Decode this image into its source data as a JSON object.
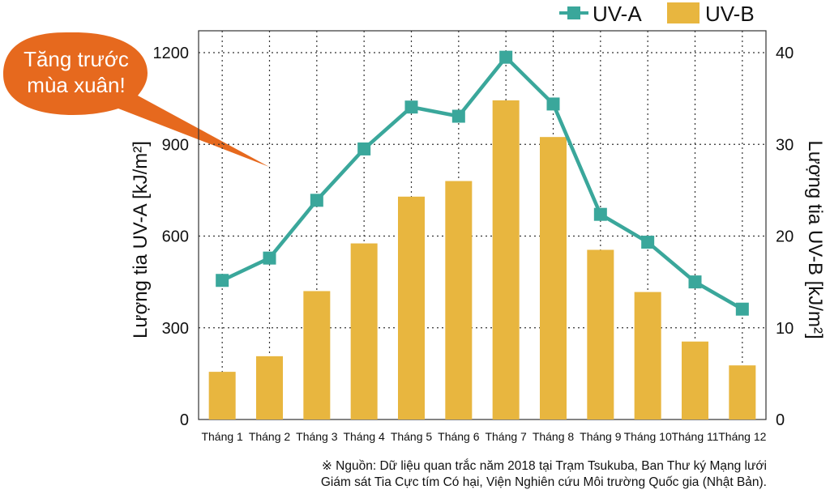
{
  "callout": {
    "line1": "Tăng trước",
    "line2": "mùa xuân!"
  },
  "legend": {
    "series_a": "UV-A",
    "series_b": "UV-B"
  },
  "source": {
    "line1": "※ Nguồn: Dữ liệu quan trắc năm 2018 tại Trạm Tsukuba, Ban Thư ký Mạng lưới",
    "line2": "Giám sát Tia Cực tím Có hại, Viện Nghiên cứu Môi trường Quốc gia (Nhật Bản)."
  },
  "colors": {
    "uva": "#3aa79b",
    "uvb": "#e8b63f",
    "callout": "#e6691e",
    "grid": "#333333"
  },
  "chart_data": {
    "type": "bar+line",
    "categories": [
      "Tháng 1",
      "Tháng 2",
      "Tháng 3",
      "Tháng 4",
      "Tháng 5",
      "Tháng 6",
      "Tháng 7",
      "Tháng 8",
      "Tháng 9",
      "Tháng 10",
      "Tháng 11",
      "Tháng 12"
    ],
    "series": [
      {
        "name": "UV-A",
        "type": "line",
        "axis": "left",
        "values": [
          455,
          528,
          717,
          885,
          1022,
          992,
          1185,
          1032,
          671,
          580,
          450,
          361
        ]
      },
      {
        "name": "UV-B",
        "type": "bar",
        "axis": "right",
        "values": [
          5.2,
          6.9,
          14.0,
          19.2,
          24.3,
          26.0,
          34.8,
          30.8,
          18.5,
          13.9,
          8.5,
          5.9
        ]
      }
    ],
    "ylabel_left": "Lượng tia UV-A [kJ/m²]",
    "ylabel_right": "Lượng tia UV-B [kJ/m²]",
    "ylim_left": [
      0,
      1200
    ],
    "ylim_right": [
      0,
      40
    ],
    "yticks_left": [
      "0",
      "300",
      "600",
      "900",
      "1200"
    ],
    "yticks_right": [
      "0",
      "10",
      "20",
      "30",
      "40"
    ],
    "grid": true,
    "legend_position": "top-right"
  }
}
